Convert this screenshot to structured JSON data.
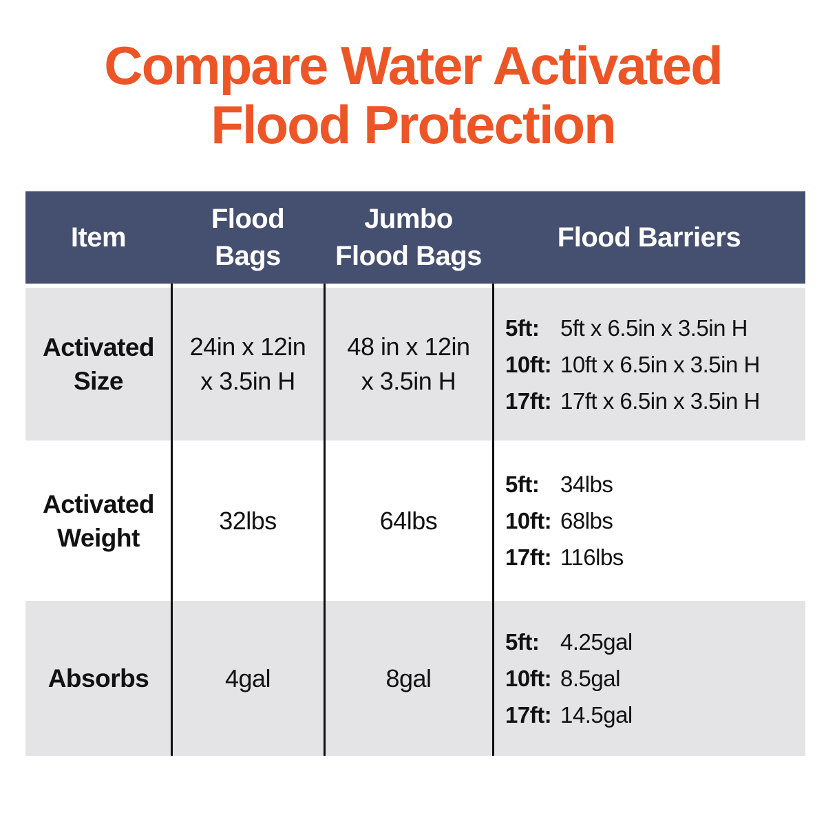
{
  "title": {
    "line1": "Compare Water Activated",
    "line2": "Flood Protection"
  },
  "colors": {
    "title_orange": "#EE5526",
    "header_navy": "#454F70",
    "row_gray": "#E4E4E6",
    "separator_black": "#101010",
    "body_text": "#111111",
    "header_text": "#FFFFFF"
  },
  "table": {
    "header": {
      "item": {
        "line1": "Item",
        "line2": ""
      },
      "flood_bags": {
        "line1": "Flood",
        "line2": "Bags"
      },
      "jumbo_flood_bags": {
        "line1": "Jumbo",
        "line2": "Flood Bags"
      },
      "flood_barriers": {
        "line1": "Flood Barriers",
        "line2": ""
      }
    },
    "rows": [
      {
        "item": "Activated Size",
        "flood_bags": {
          "line1": "24in x 12in",
          "line2": "x 3.5in H"
        },
        "jumbo_flood_bags": {
          "line1": "48 in x 12in",
          "line2": "x 3.5in H"
        },
        "flood_barriers": [
          {
            "size": "5ft:",
            "value": "5ft x 6.5in x 3.5in H"
          },
          {
            "size": "10ft:",
            "value": "10ft x 6.5in x 3.5in H"
          },
          {
            "size": "17ft:",
            "value": "17ft x 6.5in x 3.5in H"
          }
        ]
      },
      {
        "item": "Activated Weight",
        "flood_bags": {
          "line1": "32lbs",
          "line2": ""
        },
        "jumbo_flood_bags": {
          "line1": "64lbs",
          "line2": ""
        },
        "flood_barriers": [
          {
            "size": "5ft:",
            "value": "34lbs"
          },
          {
            "size": "10ft:",
            "value": "68lbs"
          },
          {
            "size": "17ft:",
            "value": "116lbs"
          }
        ]
      },
      {
        "item": "Absorbs",
        "flood_bags": {
          "line1": "4gal",
          "line2": ""
        },
        "jumbo_flood_bags": {
          "line1": "8gal",
          "line2": ""
        },
        "flood_barriers": [
          {
            "size": "5ft:",
            "value": "4.25gal"
          },
          {
            "size": "10ft:",
            "value": "8.5gal"
          },
          {
            "size": "17ft:",
            "value": "14.5gal"
          }
        ]
      }
    ]
  }
}
